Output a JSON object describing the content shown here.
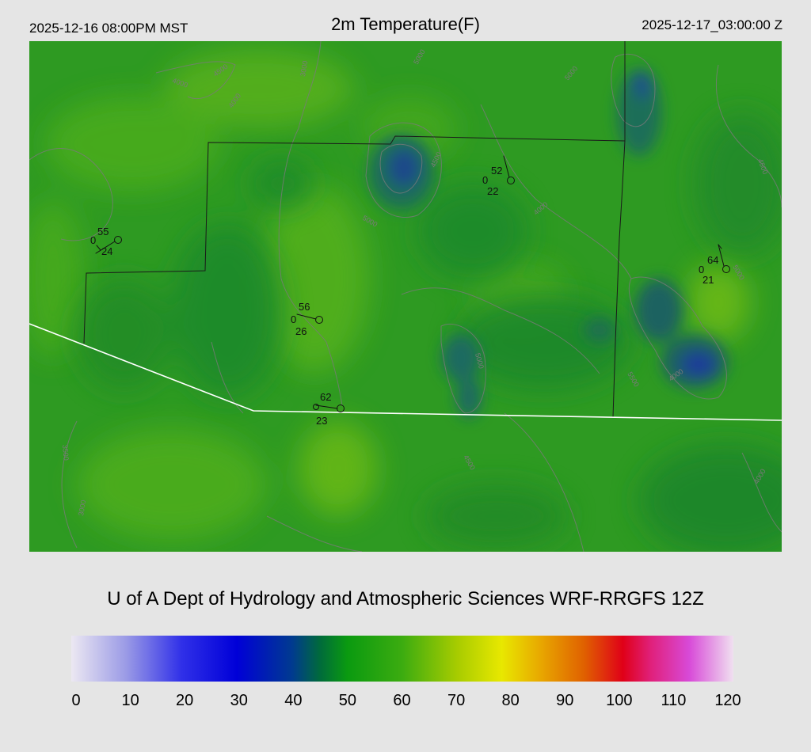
{
  "header": {
    "valid_local": "2025-12-16 08:00PM MST",
    "title": "2m Temperature(F)",
    "valid_utc": "2025-12-17_03:00:00 Z"
  },
  "footer": {
    "credit": "U of A Dept of Hydrology and Atmospheric Sciences WRF-RRGFS 12Z"
  },
  "colorbar": {
    "min": 0,
    "max": 120,
    "tick_labels": [
      "0",
      "10",
      "20",
      "30",
      "40",
      "50",
      "60",
      "70",
      "80",
      "90",
      "100",
      "110",
      "120"
    ],
    "color_stops": [
      {
        "value": 0,
        "color": "#ece8f2"
      },
      {
        "value": 10,
        "color": "#9a9ae6"
      },
      {
        "value": 20,
        "color": "#3030e8"
      },
      {
        "value": 30,
        "color": "#0000d8"
      },
      {
        "value": 40,
        "color": "#003a90"
      },
      {
        "value": 45,
        "color": "#006a3c"
      },
      {
        "value": 50,
        "color": "#0a9a10"
      },
      {
        "value": 60,
        "color": "#3cac10"
      },
      {
        "value": 70,
        "color": "#a8cc00"
      },
      {
        "value": 78,
        "color": "#e8e800"
      },
      {
        "value": 85,
        "color": "#e8a800"
      },
      {
        "value": 93,
        "color": "#e06000"
      },
      {
        "value": 100,
        "color": "#e00018"
      },
      {
        "value": 105,
        "color": "#e0207a"
      },
      {
        "value": 112,
        "color": "#d84ad8"
      },
      {
        "value": 120,
        "color": "#f0e0f0"
      }
    ]
  },
  "map": {
    "background_color": "#2e9a22",
    "border_color": "#ffffff",
    "county_line_color": "#1a1a1a",
    "contour_color": "#7a7a7a",
    "contour_labels": [
      "4000",
      "4500",
      "3000",
      "4000",
      "5000",
      "5000",
      "4500",
      "5000",
      "4000",
      "5000",
      "5500",
      "4000",
      "5000",
      "4500",
      "3000",
      "3500",
      "4500",
      "4000"
    ],
    "stations": [
      {
        "temp": "55",
        "dew": "24",
        "gust": "0"
      },
      {
        "temp": "52",
        "dew": "22",
        "gust": "0"
      },
      {
        "temp": "56",
        "dew": "26",
        "gust": "0"
      },
      {
        "temp": "62",
        "dew": "23",
        "gust": "0"
      },
      {
        "temp": "64",
        "dew": "21",
        "gust": "0"
      }
    ]
  }
}
